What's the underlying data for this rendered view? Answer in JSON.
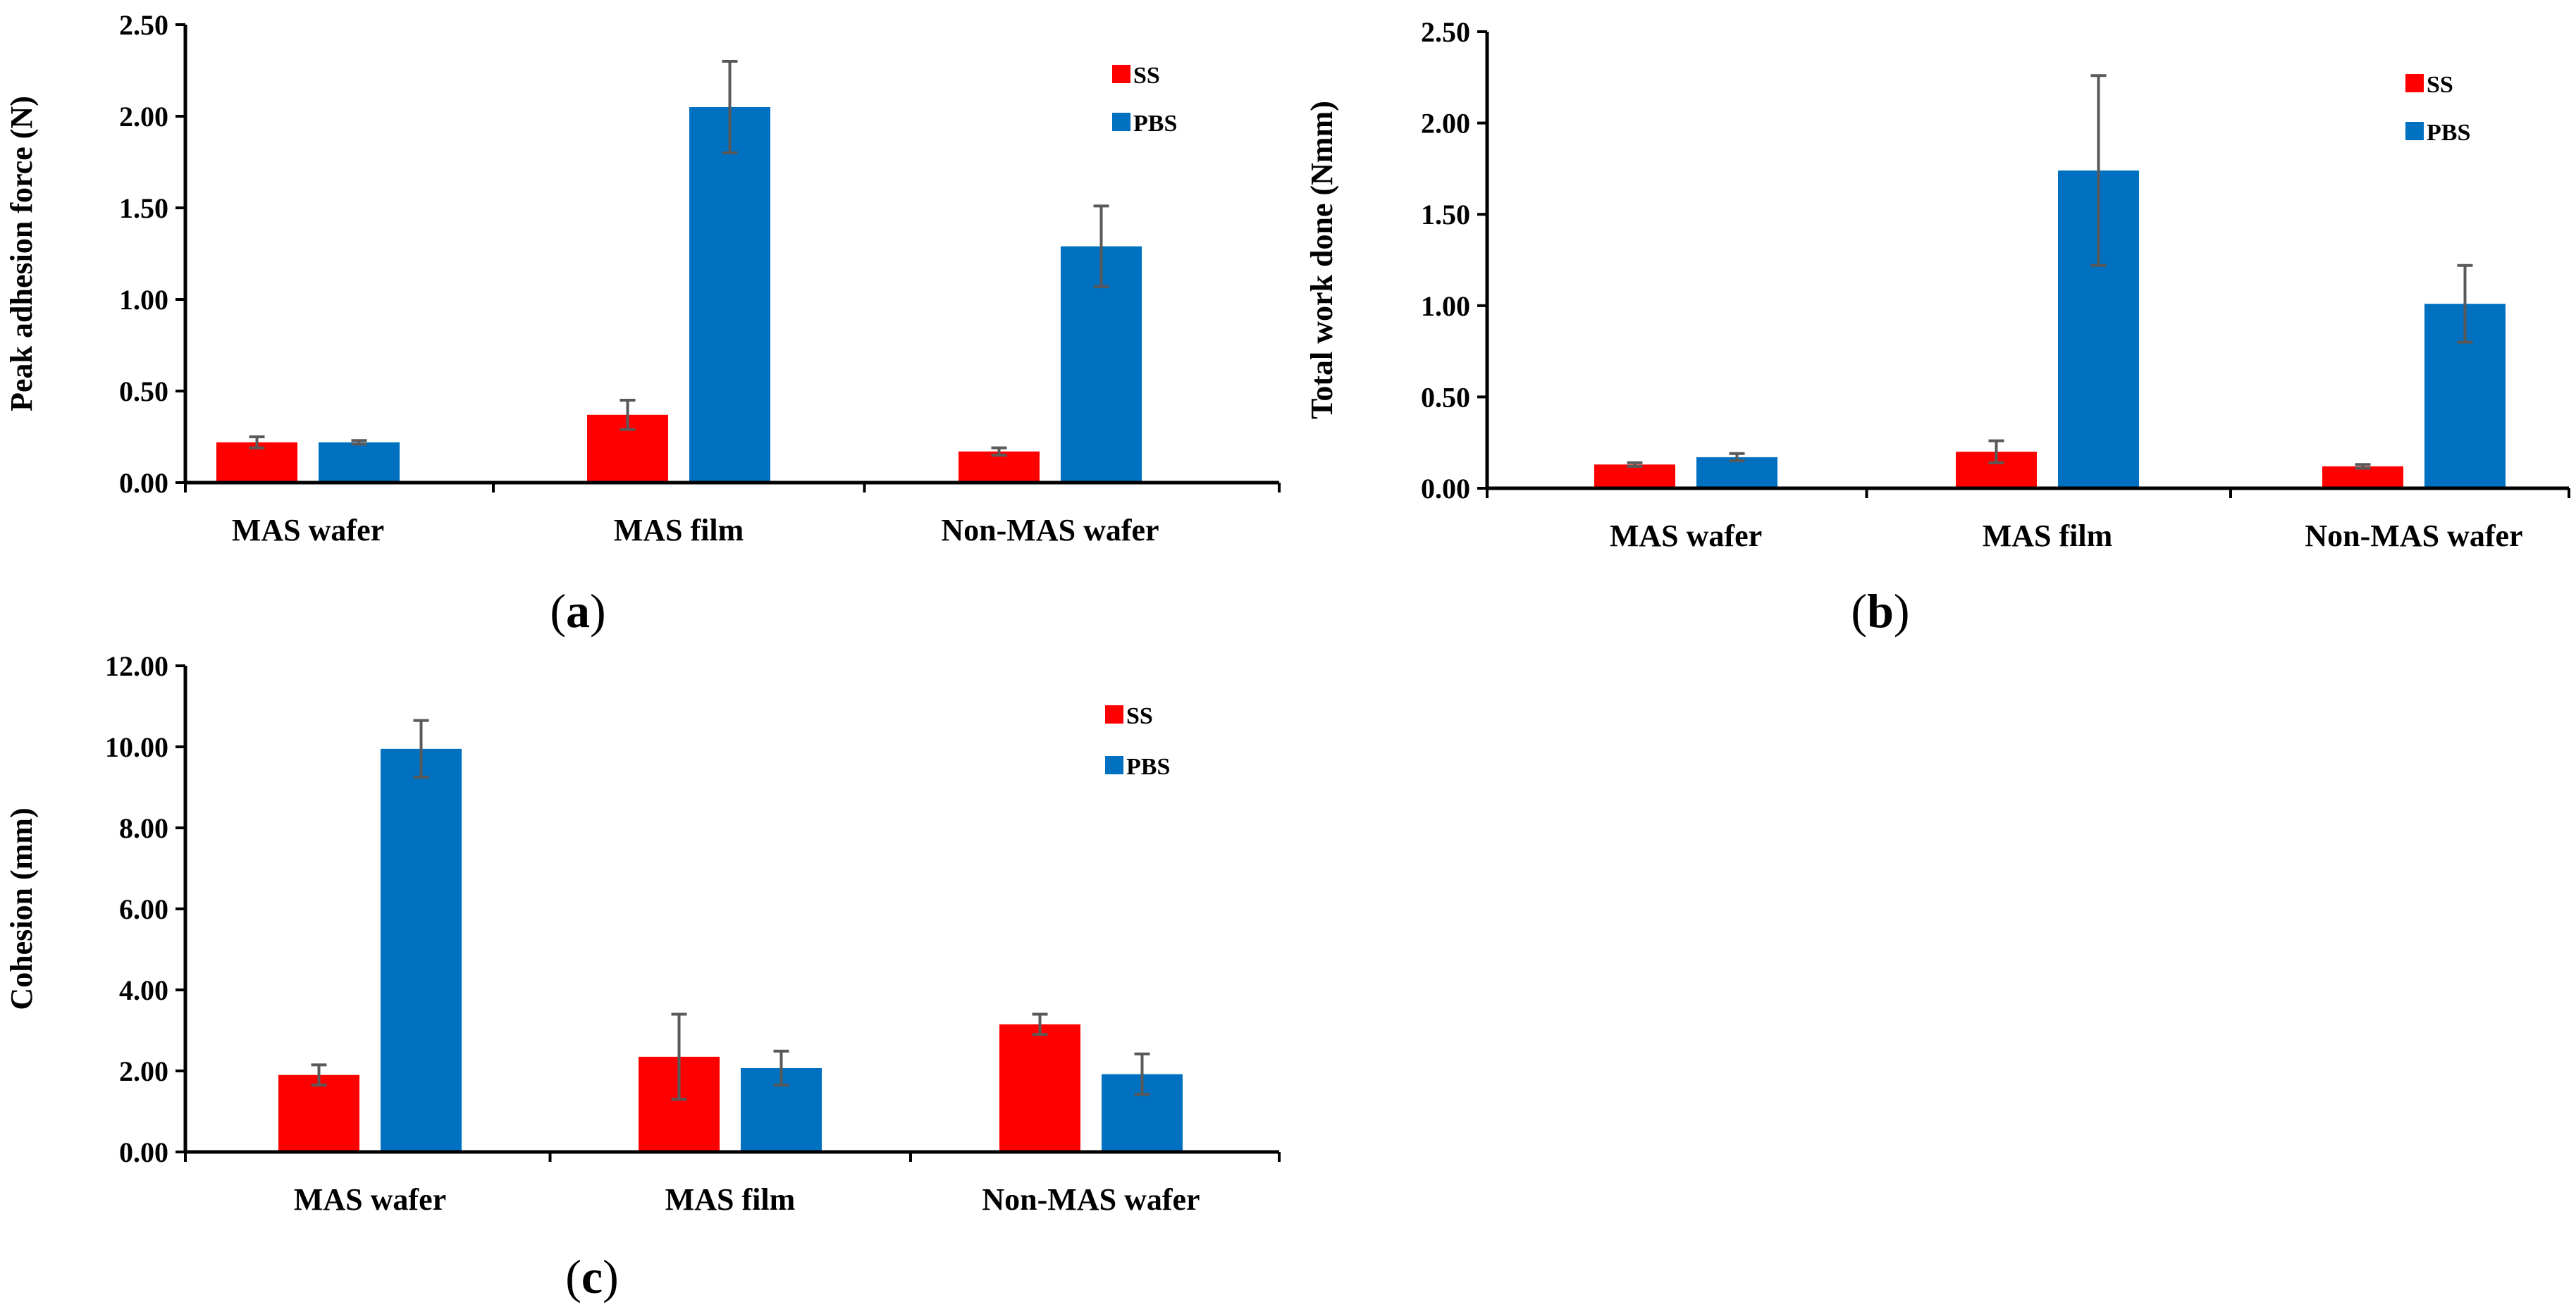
{
  "colors": {
    "SS": "#ff0000",
    "PBS": "#0070c0",
    "axis": "#000000",
    "error": "#595959"
  },
  "chart_data": [
    {
      "type": "bar",
      "panel_label": "a",
      "categories": [
        "MAS wafer",
        "MAS film",
        "Non-MAS wafer"
      ],
      "ylabel": "Peak adhesion force (N)",
      "ylim": [
        0,
        2.5
      ],
      "yticks": [
        "0.00",
        "0.50",
        "1.00",
        "1.50",
        "2.00",
        "2.50"
      ],
      "ytick_values": [
        0,
        0.5,
        1,
        1.5,
        2,
        2.5
      ],
      "legend_position": "top-right",
      "series": [
        {
          "name": "SS",
          "color": "#ff0000",
          "values": [
            0.22,
            0.37,
            0.17
          ],
          "errors": [
            0.03,
            0.08,
            0.02
          ]
        },
        {
          "name": "PBS",
          "color": "#0070c0",
          "values": [
            0.22,
            2.05,
            1.29
          ],
          "errors": [
            0.01,
            0.25,
            0.22
          ]
        }
      ]
    },
    {
      "type": "bar",
      "panel_label": "b",
      "categories": [
        "MAS wafer",
        "MAS film",
        "Non-MAS wafer"
      ],
      "ylabel": "Total work done (Nmm)",
      "ylim": [
        0,
        2.5
      ],
      "yticks": [
        "0.00",
        "0.50",
        "1.00",
        "1.50",
        "2.00",
        "2.50"
      ],
      "ytick_values": [
        0,
        0.5,
        1,
        1.5,
        2,
        2.5
      ],
      "legend_position": "top-right",
      "series": [
        {
          "name": "SS",
          "color": "#ff0000",
          "values": [
            0.13,
            0.2,
            0.12
          ],
          "errors": [
            0.01,
            0.06,
            0.01
          ]
        },
        {
          "name": "PBS",
          "color": "#0070c0",
          "values": [
            0.17,
            1.74,
            1.01
          ],
          "errors": [
            0.02,
            0.52,
            0.21
          ]
        }
      ]
    },
    {
      "type": "bar",
      "panel_label": "c",
      "categories": [
        "MAS wafer",
        "MAS film",
        "Non-MAS wafer"
      ],
      "ylabel": "Cohesion (mm)",
      "ylim": [
        0,
        12
      ],
      "yticks": [
        "0.00",
        "2.00",
        "4.00",
        "6.00",
        "8.00",
        "10.00",
        "12.00"
      ],
      "ytick_values": [
        0,
        2,
        4,
        6,
        8,
        10,
        12
      ],
      "legend_position": "top-right",
      "series": [
        {
          "name": "SS",
          "color": "#ff0000",
          "values": [
            1.9,
            2.35,
            3.15
          ],
          "errors": [
            0.25,
            1.05,
            0.25
          ]
        },
        {
          "name": "PBS",
          "color": "#0070c0",
          "values": [
            9.95,
            2.07,
            1.92
          ],
          "errors": [
            0.7,
            0.42,
            0.5
          ]
        }
      ]
    }
  ]
}
